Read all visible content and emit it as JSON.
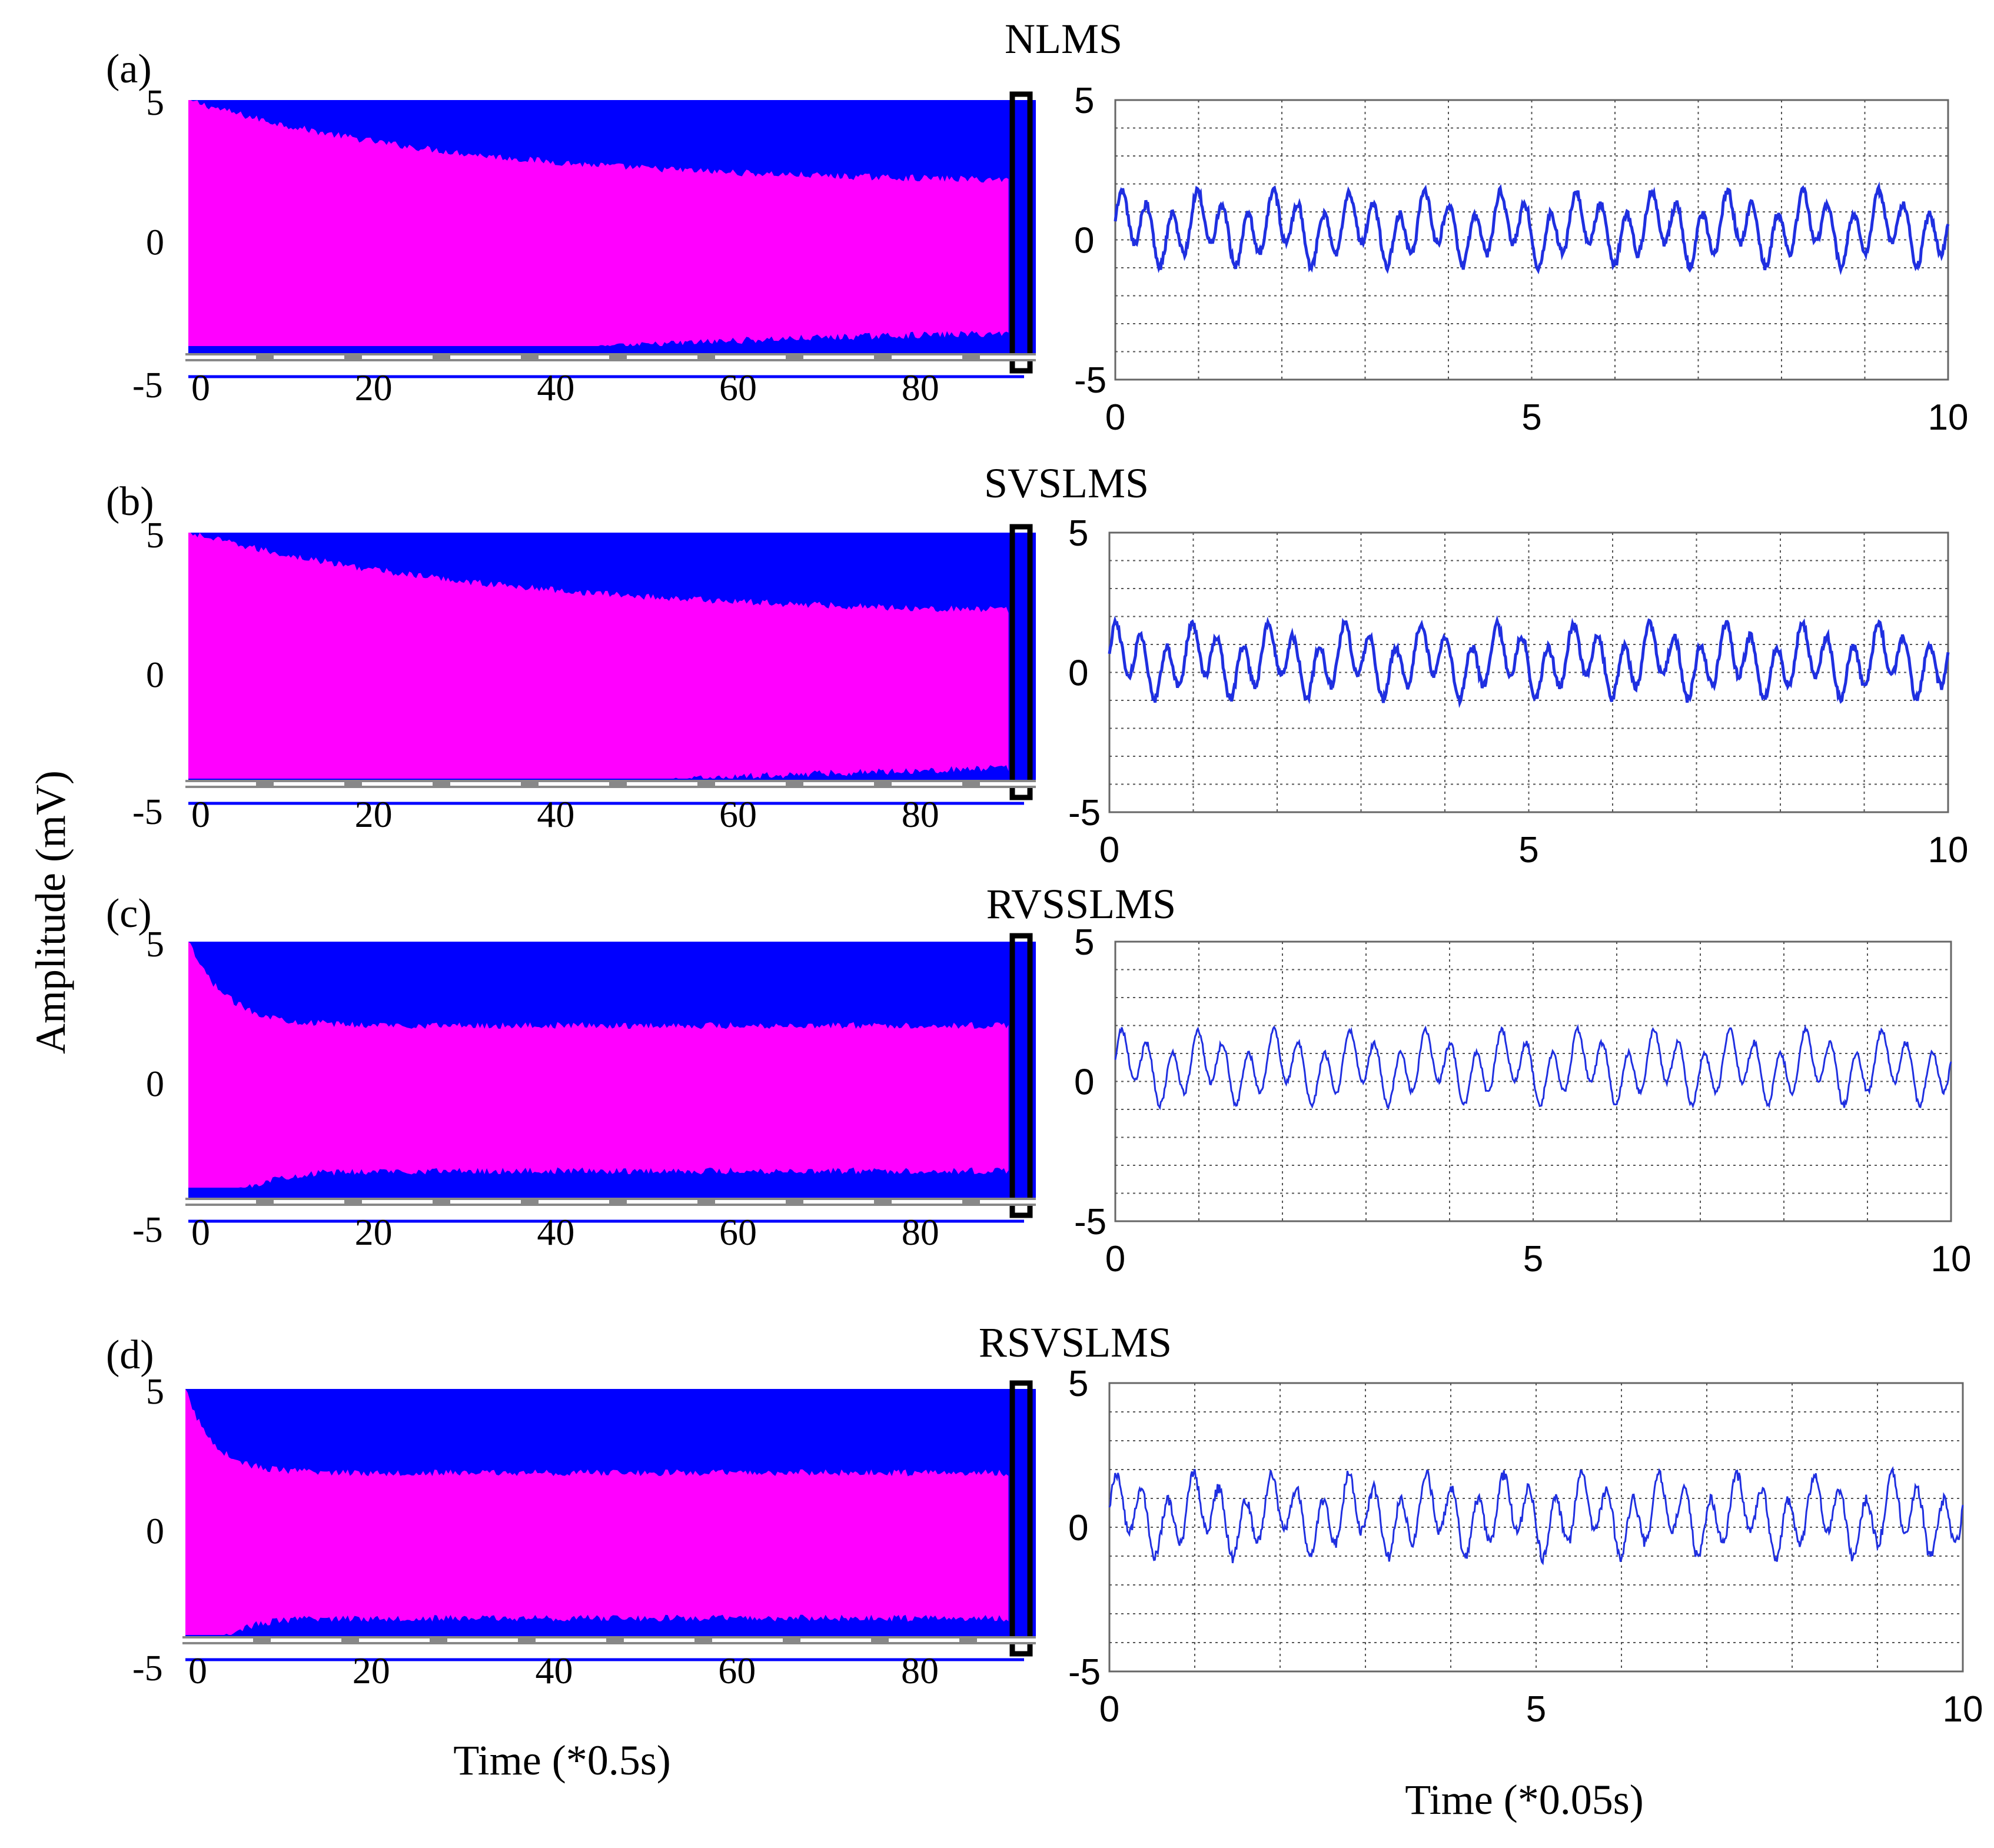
{
  "figure": {
    "ylabel": "Amplitude (mV)",
    "left_xlabel": "Time (*0.5s)",
    "right_xlabel": "Time (*0.05s)"
  },
  "colors": {
    "envelope": "#0000ff",
    "error": "#ff00ff",
    "wave": "#1f2fe0",
    "grid": "#555555"
  },
  "chart_data": [
    {
      "panel": "(a)",
      "title": "NLMS",
      "type": "area",
      "left": {
        "x_ticks": [
          0,
          20,
          40,
          60,
          80
        ],
        "xlim": [
          0,
          93
        ],
        "y_ticks": [
          5,
          0,
          -5
        ],
        "ylim": [
          -5,
          5
        ],
        "envelope_amplitude": 5,
        "error_initial": 5,
        "error_final": 2,
        "decay": 30
      },
      "right": {
        "type": "line",
        "x_ticks": [
          0,
          5,
          10
        ],
        "xlim": [
          0,
          10
        ],
        "y_ticks": [
          5,
          0,
          -5
        ],
        "ylim": [
          -5,
          5
        ],
        "amplitude": 1.4,
        "offset": 0.4,
        "noise": 0.15,
        "grid": true
      }
    },
    {
      "panel": "(b)",
      "title": "SVSLMS",
      "type": "area",
      "left": {
        "x_ticks": [
          0,
          20,
          40,
          60,
          80
        ],
        "xlim": [
          0,
          93
        ],
        "y_ticks": [
          5,
          0,
          -5
        ],
        "ylim": [
          -5,
          5
        ],
        "envelope_amplitude": 5,
        "error_initial": 5,
        "error_final": 2,
        "decay": 35
      },
      "right": {
        "type": "line",
        "x_ticks": [
          0,
          5,
          10
        ],
        "xlim": [
          0,
          10
        ],
        "y_ticks": [
          5,
          0,
          -5
        ],
        "ylim": [
          -5,
          5
        ],
        "amplitude": 1.4,
        "offset": 0.4,
        "noise": 0.15,
        "grid": true
      }
    },
    {
      "panel": "(c)",
      "title": "RVSSLMS",
      "type": "area",
      "left": {
        "x_ticks": [
          0,
          20,
          40,
          60,
          80
        ],
        "xlim": [
          0,
          93
        ],
        "y_ticks": [
          5,
          0,
          -5
        ],
        "ylim": [
          -5,
          5
        ],
        "envelope_amplitude": 5,
        "error_initial": 5,
        "error_final": 2,
        "decay": 4
      },
      "right": {
        "type": "line",
        "x_ticks": [
          0,
          5,
          10
        ],
        "xlim": [
          0,
          10
        ],
        "y_ticks": [
          5,
          0,
          -5
        ],
        "ylim": [
          -5,
          5
        ],
        "amplitude": 1.4,
        "offset": 0.5,
        "noise": 0.1,
        "grid": true
      }
    },
    {
      "panel": "(d)",
      "title": "RSVSLMS",
      "type": "area",
      "left": {
        "x_ticks": [
          0,
          20,
          40,
          60,
          80
        ],
        "xlim": [
          0,
          93
        ],
        "y_ticks": [
          5,
          0,
          -5
        ],
        "ylim": [
          -5,
          5
        ],
        "envelope_amplitude": 5,
        "error_initial": 5,
        "error_final": 2,
        "decay": 3
      },
      "right": {
        "type": "line",
        "x_ticks": [
          0,
          5,
          10
        ],
        "xlim": [
          0,
          10
        ],
        "y_ticks": [
          5,
          0,
          -5
        ],
        "ylim": [
          -5,
          5
        ],
        "amplitude": 1.5,
        "offset": 0.4,
        "noise": 0.2,
        "grid": true
      }
    }
  ]
}
